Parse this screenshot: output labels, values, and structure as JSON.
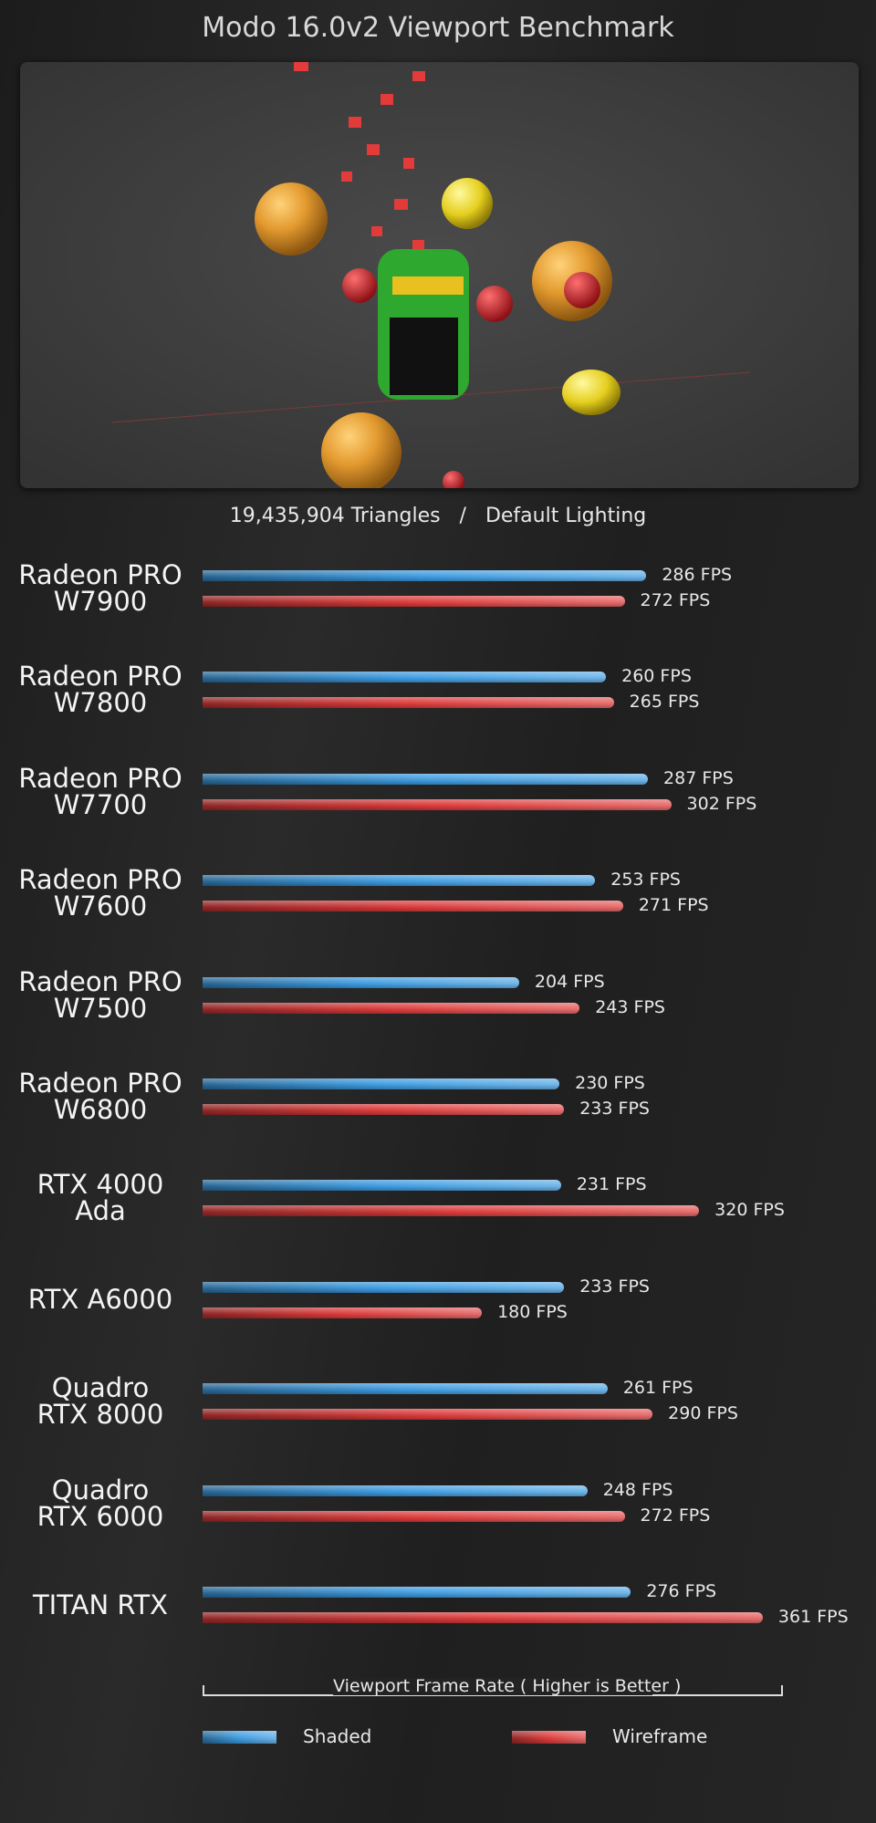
{
  "chart_data": {
    "type": "bar",
    "orientation": "horizontal",
    "title": "Modo 16.0v2 Viewport Benchmark",
    "subtitle": "19,435,904 Triangles   /   Default Lighting",
    "x_label": "Viewport Frame Rate ( Higher is Better )",
    "categories": [
      "Radeon PRO\nW7900",
      "Radeon PRO\nW7800",
      "Radeon PRO\nW7700",
      "Radeon PRO\nW7600",
      "Radeon PRO\nW7500",
      "Radeon PRO\nW6800",
      "RTX 4000\nAda",
      "RTX A6000",
      "Quadro\nRTX 8000",
      "Quadro\nRTX 6000",
      "TITAN RTX"
    ],
    "xlim": [
      0,
      374
    ],
    "series": [
      {
        "name": "Shaded",
        "color": "#3d9be0",
        "values": [
          286,
          260,
          287,
          253,
          204,
          230,
          231,
          233,
          261,
          248,
          276
        ],
        "value_labels": [
          "286 FPS",
          "260 FPS",
          "287 FPS",
          "253 FPS",
          "204 FPS",
          "230 FPS",
          "231 FPS",
          "233 FPS",
          "261 FPS",
          "248 FPS",
          "276 FPS"
        ]
      },
      {
        "name": "Wireframe",
        "color": "#dd3b3b",
        "values": [
          272,
          265,
          302,
          271,
          243,
          233,
          320,
          180,
          290,
          272,
          361
        ],
        "value_labels": [
          "272 FPS",
          "265 FPS",
          "302 FPS",
          "271 FPS",
          "243 FPS",
          "233 FPS",
          "320 FPS",
          "180 FPS",
          "290 FPS",
          "272 FPS",
          "361 FPS"
        ]
      }
    ]
  }
}
